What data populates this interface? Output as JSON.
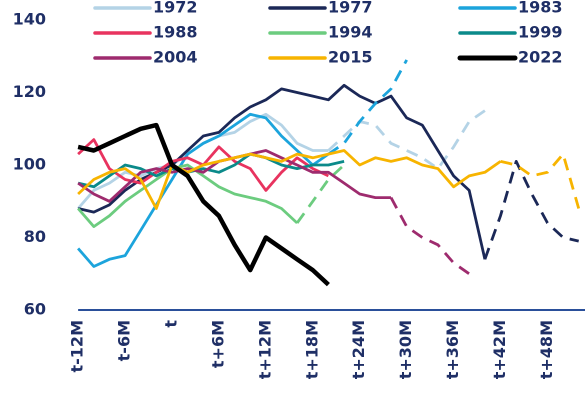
{
  "chart_data": {
    "type": "line",
    "x": [
      -12,
      -10,
      -8,
      -6,
      -4,
      -2,
      0,
      2,
      4,
      6,
      8,
      10,
      12,
      14,
      16,
      18,
      20,
      22,
      24,
      26,
      28,
      30,
      32,
      34,
      36,
      38,
      40,
      42,
      44,
      46,
      48,
      50,
      52
    ],
    "xlim": [
      -12.4,
      52.8
    ],
    "xticks": [
      {
        "value": -12,
        "label": "t-12M"
      },
      {
        "value": -6,
        "label": "t-6M"
      },
      {
        "value": 0,
        "label": "t"
      },
      {
        "value": 6,
        "label": "t+6M"
      },
      {
        "value": 12,
        "label": "t+12M"
      },
      {
        "value": 18,
        "label": "t+18M"
      },
      {
        "value": 24,
        "label": "t+24M"
      },
      {
        "value": 30,
        "label": "t+30M"
      },
      {
        "value": 36,
        "label": "t+36M"
      },
      {
        "value": 42,
        "label": "t+42M"
      },
      {
        "value": 48,
        "label": "t+48M"
      }
    ],
    "ylim": [
      60,
      140
    ],
    "yticks": [
      60,
      80,
      100,
      120,
      140
    ],
    "series": [
      {
        "name": "1972",
        "color": "#b4d3e6",
        "dashed_from": 20,
        "values": [
          88,
          93,
          95,
          98,
          97,
          99,
          100,
          103,
          106,
          108,
          109,
          112,
          114,
          111,
          106,
          104,
          104,
          108,
          112,
          111,
          106,
          104,
          102,
          99,
          105,
          112,
          115,
          null,
          null,
          null,
          null,
          null,
          null
        ]
      },
      {
        "name": "1977",
        "color": "#1b2857",
        "dashed_from": 40,
        "values": [
          88,
          87,
          89,
          93,
          96,
          98,
          100,
          104,
          108,
          109,
          113,
          116,
          118,
          121,
          120,
          119,
          118,
          122,
          119,
          117,
          119,
          113,
          111,
          104,
          97,
          93,
          74,
          86,
          101,
          92,
          84,
          80,
          79
        ]
      },
      {
        "name": "1983",
        "color": "#1ca4dc",
        "dashed_from": 20,
        "values": [
          77,
          72,
          74,
          75,
          82,
          89,
          96,
          103,
          106,
          108,
          111,
          114,
          113,
          108,
          104,
          100,
          103,
          106,
          112,
          117,
          121,
          129,
          null,
          null,
          null,
          null,
          null,
          null,
          null,
          null,
          null,
          null,
          null
        ]
      },
      {
        "name": "1988",
        "color": "#e8335f",
        "values": [
          103,
          107,
          99,
          96,
          95,
          98,
          101,
          102,
          100,
          105,
          101,
          99,
          93,
          98,
          102,
          99,
          97,
          null,
          null,
          null,
          null,
          null,
          null,
          null,
          null,
          null,
          null,
          null,
          null,
          null,
          null,
          null,
          null
        ]
      },
      {
        "name": "1994",
        "color": "#6ccc7f",
        "dashed_from": 16,
        "values": [
          88,
          83,
          86,
          90,
          93,
          96,
          99,
          100,
          97,
          94,
          92,
          91,
          90,
          88,
          84,
          90,
          96,
          100,
          null,
          null,
          null,
          null,
          null,
          null,
          null,
          null,
          null,
          null,
          null,
          null,
          null,
          null,
          null
        ]
      },
      {
        "name": "1999",
        "color": "#0b8a8a",
        "values": [
          95,
          94,
          97,
          100,
          99,
          97,
          99,
          98,
          99,
          98,
          100,
          103,
          102,
          100,
          99,
          100,
          100,
          101,
          null,
          null,
          null,
          null,
          null,
          null,
          null,
          null,
          null,
          null,
          null,
          null,
          null,
          null,
          null
        ]
      },
      {
        "name": "2004",
        "color": "#9e2b6e",
        "dashed_from": 28,
        "values": [
          95,
          92,
          90,
          94,
          98,
          99,
          98,
          99,
          98,
          101,
          102,
          103,
          104,
          102,
          100,
          98,
          98,
          95,
          92,
          91,
          91,
          83,
          80,
          78,
          73,
          70,
          null,
          null,
          null,
          null,
          null,
          null,
          null
        ]
      },
      {
        "name": "2015",
        "color": "#f7b400",
        "dashed_from": 42,
        "values": [
          92,
          96,
          98,
          99,
          96,
          88,
          100,
          98,
          100,
          101,
          102,
          103,
          102,
          101,
          103,
          102,
          103,
          104,
          100,
          102,
          101,
          102,
          100,
          99,
          94,
          97,
          98,
          101,
          100,
          97,
          98,
          103,
          88
        ]
      },
      {
        "name": "2022",
        "color": "#000000",
        "values": [
          105,
          104,
          106,
          108,
          110,
          111,
          100,
          97,
          90,
          86,
          78,
          71,
          80,
          77,
          74,
          71,
          67,
          null,
          null,
          null,
          null,
          null,
          null,
          null,
          null,
          null,
          null,
          null,
          null,
          null,
          null,
          null,
          null
        ]
      }
    ]
  }
}
